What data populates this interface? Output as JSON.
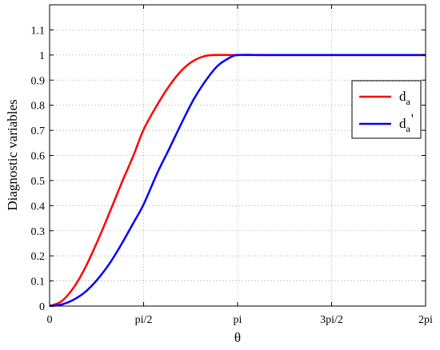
{
  "chart_data": {
    "type": "line",
    "xlabel": "θ",
    "ylabel": "Diagnostic variables",
    "xlim": [
      0,
      6.283185307
    ],
    "ylim": [
      0,
      1.2
    ],
    "x_ticks": [
      {
        "value": 0,
        "label": "0"
      },
      {
        "value": 1.570796327,
        "label": "pi/2"
      },
      {
        "value": 3.141592654,
        "label": "pi"
      },
      {
        "value": 4.71238898,
        "label": "3pi/2"
      },
      {
        "value": 6.283185307,
        "label": "2pi"
      }
    ],
    "y_ticks": [
      {
        "value": 0,
        "label": "0"
      },
      {
        "value": 0.1,
        "label": "0.1"
      },
      {
        "value": 0.2,
        "label": "0.2"
      },
      {
        "value": 0.3,
        "label": "0.3"
      },
      {
        "value": 0.4,
        "label": "0.4"
      },
      {
        "value": 0.5,
        "label": "0.5"
      },
      {
        "value": 0.6,
        "label": "0.6"
      },
      {
        "value": 0.7,
        "label": "0.7"
      },
      {
        "value": 0.8,
        "label": "0.8"
      },
      {
        "value": 0.9,
        "label": "0.9"
      },
      {
        "value": 1,
        "label": "1"
      },
      {
        "value": 1.1,
        "label": "1.1"
      }
    ],
    "grid": true,
    "legend_position": "right",
    "series": [
      {
        "name": "d_a",
        "legend_main": "d",
        "legend_sub": "a",
        "legend_suffix": "",
        "color": "#ff0000",
        "x": [
          0,
          0.2,
          0.4,
          0.6,
          0.8,
          1.0,
          1.2,
          1.4,
          1.571,
          1.8,
          2.0,
          2.2,
          2.4,
          2.6,
          2.8,
          3.0,
          3.142,
          3.5,
          4.0,
          4.5,
          5.0,
          5.5,
          6.0,
          6.283
        ],
        "y": [
          0,
          0.019,
          0.073,
          0.155,
          0.258,
          0.371,
          0.488,
          0.599,
          0.703,
          0.802,
          0.877,
          0.937,
          0.976,
          0.996,
          1,
          1,
          1,
          1,
          1,
          1,
          1,
          1,
          1,
          1
        ]
      },
      {
        "name": "d_a'",
        "legend_main": "d",
        "legend_sub": "a",
        "legend_suffix": "'",
        "color": "#0000ff",
        "x": [
          0,
          0.2,
          0.4,
          0.6,
          0.8,
          1.0,
          1.2,
          1.4,
          1.571,
          1.8,
          2.0,
          2.2,
          2.4,
          2.6,
          2.8,
          3.0,
          3.142,
          3.5,
          4.0,
          4.5,
          5.0,
          5.5,
          6.0,
          6.283
        ],
        "y": [
          0,
          0.006,
          0.025,
          0.057,
          0.106,
          0.169,
          0.246,
          0.331,
          0.405,
          0.53,
          0.627,
          0.726,
          0.82,
          0.895,
          0.955,
          0.988,
          1,
          1,
          1,
          1,
          1,
          1,
          1,
          1
        ]
      }
    ]
  }
}
